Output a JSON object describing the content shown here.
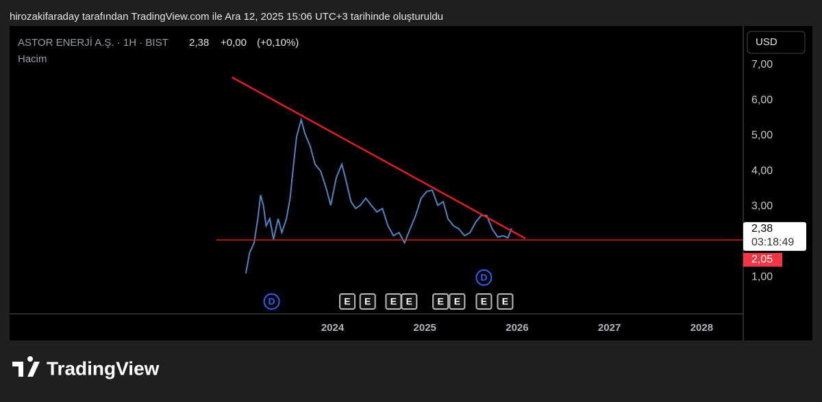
{
  "header": {
    "caption": "hirozakifaraday tarafından TradingView.com ile Ara 12, 2025 15:06 UTC+3 tarihinde oluşturuldu",
    "brand": "TradingView"
  },
  "chart_data": {
    "type": "line",
    "symbol": "ASTOR ENERJİ A.Ş. · 1H · BIST",
    "last": "2,38",
    "change": "+0,00",
    "change_pct": "(+0,10%)",
    "volume_label": "Hacim",
    "currency": "USD",
    "series": [
      {
        "color": "#4f86c6",
        "x": [
          2023.06,
          2023.1,
          2023.15,
          2023.19,
          2023.22,
          2023.25,
          2023.28,
          2023.32,
          2023.36,
          2023.41,
          2023.45,
          2023.5,
          2023.54,
          2023.57,
          2023.61,
          2023.66,
          2023.7,
          2023.76,
          2023.81,
          2023.87,
          2023.93,
          2023.98,
          2024.04,
          2024.1,
          2024.13,
          2024.2,
          2024.25,
          2024.3,
          2024.36,
          2024.42,
          2024.48,
          2024.54,
          2024.6,
          2024.66,
          2024.72,
          2024.78,
          2024.84,
          2024.9,
          2024.96,
          2025.02,
          2025.08,
          2025.14,
          2025.2,
          2025.25,
          2025.31,
          2025.37,
          2025.43,
          2025.49,
          2025.55,
          2025.61,
          2025.67,
          2025.73,
          2025.79,
          2025.85,
          2025.9,
          2025.94
        ],
        "values": [
          1.1,
          1.68,
          1.97,
          2.65,
          3.32,
          3.03,
          2.45,
          2.65,
          2.07,
          2.65,
          2.26,
          2.65,
          3.23,
          4.0,
          4.97,
          5.45,
          5.06,
          4.68,
          4.19,
          4.0,
          3.52,
          3.03,
          3.81,
          4.19,
          3.9,
          3.13,
          2.94,
          3.03,
          3.23,
          3.03,
          2.84,
          2.94,
          2.45,
          2.17,
          2.26,
          1.97,
          2.36,
          2.74,
          3.23,
          3.42,
          3.46,
          3.03,
          3.13,
          2.65,
          2.45,
          2.36,
          2.17,
          2.26,
          2.55,
          2.74,
          2.74,
          2.36,
          2.13,
          2.17,
          2.11,
          2.38
        ]
      }
    ],
    "last_value": 2.38,
    "countdown": "03:18:49",
    "trendlines": [
      {
        "color": "#e0201e",
        "x": [
          2022.91,
          2026.09
        ],
        "y": [
          6.65,
          2.09
        ]
      },
      {
        "color": "#e0201e",
        "x": [
          2022.74,
          2028.45
        ],
        "y": [
          2.05,
          2.05
        ],
        "value_label": "2,05"
      }
    ],
    "events": [
      {
        "label": "D",
        "x": 2023.34
      },
      {
        "label": "E",
        "x": 2024.16
      },
      {
        "label": "E",
        "x": 2024.38
      },
      {
        "label": "E",
        "x": 2024.66
      },
      {
        "label": "E",
        "x": 2024.83
      },
      {
        "label": "E",
        "x": 2025.17
      },
      {
        "label": "E",
        "x": 2025.35
      },
      {
        "label": "E",
        "x": 2025.64
      },
      {
        "label": "D",
        "x": 2025.64
      },
      {
        "label": "E",
        "x": 2025.87
      }
    ],
    "xlim": [
      2020.5,
      2028.45
    ],
    "xticks": [
      2024,
      2025,
      2026,
      2027,
      2028
    ],
    "ylim": [
      0,
      8.1
    ],
    "yticks": [
      {
        "value": 1,
        "label": "1,00"
      },
      {
        "value": 3,
        "label": "3,00"
      },
      {
        "value": 4,
        "label": "4,00"
      },
      {
        "value": 5,
        "label": "5,00"
      },
      {
        "value": 6,
        "label": "6,00"
      },
      {
        "value": 7,
        "label": "7,00"
      }
    ]
  }
}
